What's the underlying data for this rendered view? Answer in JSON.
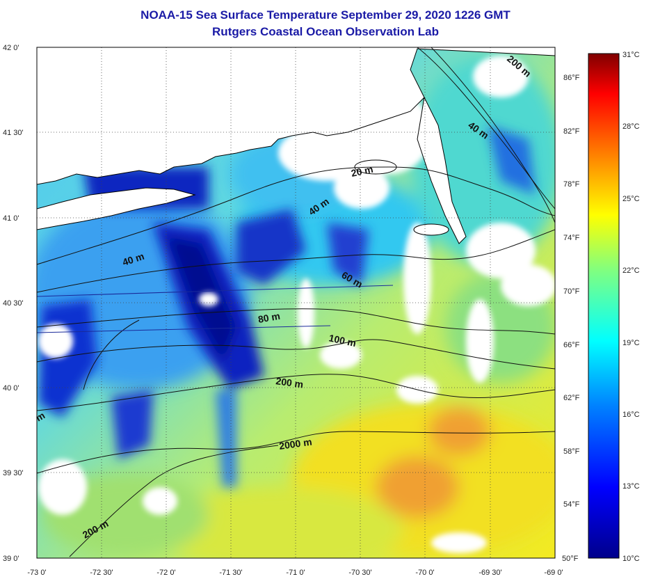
{
  "title": "NOAA-15 Sea Surface Temperature September 29, 2020 1226 GMT",
  "subtitle": "Rutgers Coastal Ocean Observation Lab",
  "lat_labels": [
    "42 0'",
    "41 30'",
    "41 0'",
    "40 30'",
    "40 0'",
    "39 30'",
    "39 0'"
  ],
  "lon_labels": [
    "-73 0'",
    "-72 30'",
    "-72 0'",
    "-71 30'",
    "-71 0'",
    "-70 30'",
    "-70 0'",
    "-69 30'",
    "-69 0'"
  ],
  "fahrenheit_labels": [
    "86°F",
    "82°F",
    "78°F",
    "74°F",
    "70°F",
    "66°F",
    "62°F",
    "58°F",
    "54°F",
    "50°F"
  ],
  "celsius_labels": [
    "31°C",
    "28°C",
    "25°C",
    "22°C",
    "19°C",
    "16°C",
    "13°C",
    "10°C"
  ],
  "contour_labels": [
    "200 m",
    "40 m",
    "20 m",
    "40 m",
    "40 m",
    "60 m",
    "80 m",
    "100 m",
    "200 m",
    "2000 m",
    "200 m",
    "m"
  ],
  "colors": {
    "title": "#1a1aa6",
    "scale_low": "#00008b",
    "scale_mid": "#ffff00",
    "scale_high": "#800000",
    "land": "#ffffff",
    "coast": "#000000"
  }
}
